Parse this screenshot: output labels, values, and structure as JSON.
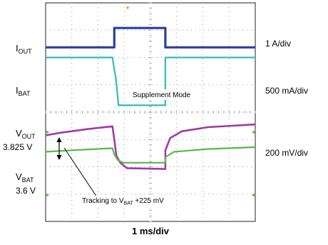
{
  "chart_data": {
    "type": "line",
    "xlabel": "1 ms/div",
    "grid": true,
    "divisions": {
      "x": 8,
      "y": 8
    },
    "x_range_div": [
      0,
      8
    ],
    "series": [
      {
        "name": "IOUT",
        "color": "#2b3f9b",
        "scale": "1 A/div",
        "points": [
          [
            0,
            1.63
          ],
          [
            2.62,
            1.63
          ],
          [
            2.62,
            0.92
          ],
          [
            4.57,
            0.92
          ],
          [
            4.57,
            1.63
          ],
          [
            8,
            1.63
          ]
        ]
      },
      {
        "name": "IBAT",
        "color": "#2fbcbc",
        "scale": "500 mA/div",
        "points": [
          [
            0,
            2.0
          ],
          [
            2.55,
            2.0
          ],
          [
            2.62,
            2.45
          ],
          [
            2.68,
            2.75
          ],
          [
            2.78,
            3.75
          ],
          [
            4.57,
            3.75
          ],
          [
            4.57,
            2.0
          ],
          [
            8,
            2.0
          ]
        ]
      },
      {
        "name": "VOUT",
        "color": "#a03aa6",
        "scale": "200 mV/div",
        "points": [
          [
            0,
            4.85
          ],
          [
            0.6,
            4.75
          ],
          [
            1.6,
            4.62
          ],
          [
            2.55,
            4.52
          ],
          [
            2.62,
            5.0
          ],
          [
            2.7,
            5.6
          ],
          [
            2.85,
            5.85
          ],
          [
            3.1,
            6.05
          ],
          [
            4.57,
            6.08
          ],
          [
            4.57,
            5.4
          ],
          [
            4.75,
            4.95
          ],
          [
            5.2,
            4.7
          ],
          [
            6.2,
            4.55
          ],
          [
            8,
            4.45
          ]
        ]
      },
      {
        "name": "VBAT",
        "color": "#5ab64c",
        "scale": "200 mV/div",
        "points": [
          [
            0,
            5.45
          ],
          [
            1.3,
            5.38
          ],
          [
            2.55,
            5.32
          ],
          [
            2.62,
            5.55
          ],
          [
            2.75,
            5.75
          ],
          [
            2.95,
            5.85
          ],
          [
            4.57,
            5.85
          ],
          [
            4.57,
            5.65
          ],
          [
            4.9,
            5.45
          ],
          [
            6.2,
            5.35
          ],
          [
            8,
            5.28
          ]
        ]
      }
    ],
    "left_labels": {
      "iout": {
        "main": "I",
        "sub": "OUT"
      },
      "ibat": {
        "main": "I",
        "sub": "BAT"
      },
      "vout": {
        "main": "V",
        "sub": "OUT"
      },
      "vout_value": "3.825 V",
      "vbat": {
        "main": "V",
        "sub": "BAT"
      },
      "vbat_value": "3.6 V"
    },
    "right_labels": {
      "iout_scale": "1 A/div",
      "ibat_scale": "500 mA/div",
      "v_scale": "200 mV/div"
    },
    "annotations": {
      "supplement": "Supplement Mode",
      "tracking_main": "Tracking to V",
      "tracking_sub": "BAT",
      "tracking_tail": " +225 mV"
    },
    "colors": {
      "grid_dot": "#9a9a9a",
      "frame": "#222222",
      "marker": "#5ab64c",
      "trigger": "#f0a020"
    }
  }
}
